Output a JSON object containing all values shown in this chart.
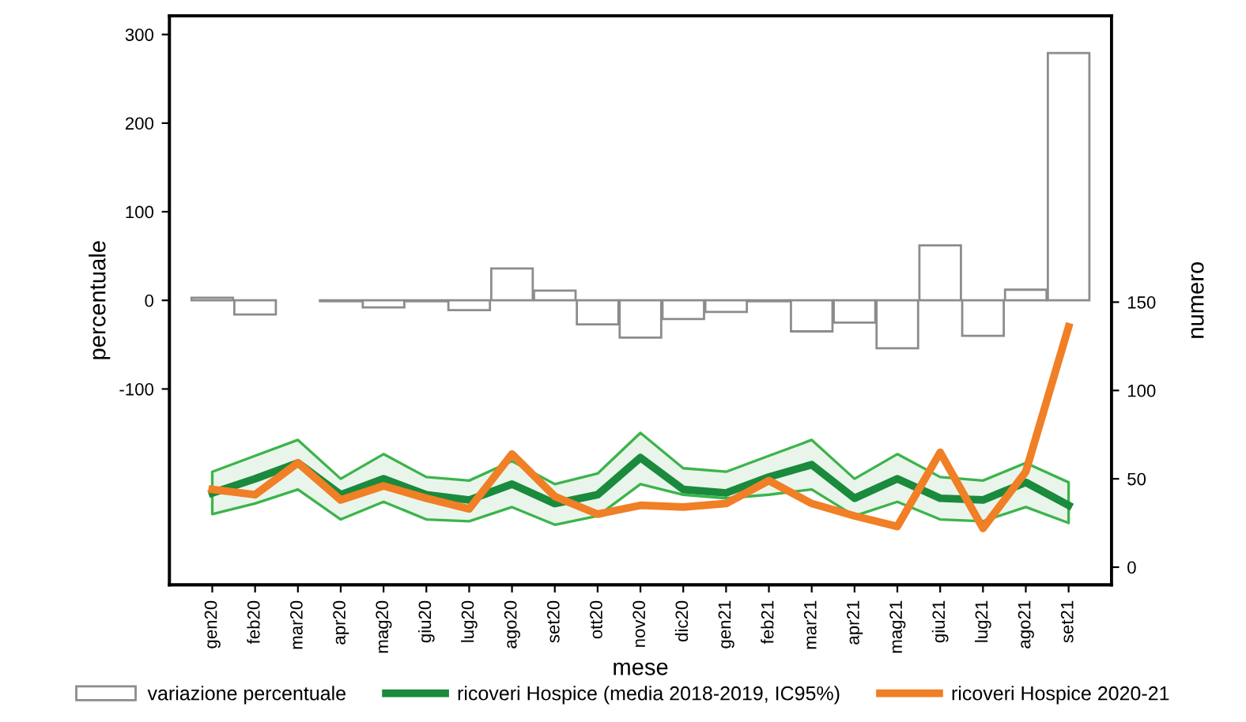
{
  "chart_data": {
    "type": "bar",
    "categories": [
      "gen20",
      "feb20",
      "mar20",
      "apr20",
      "mag20",
      "giu20",
      "lug20",
      "ago20",
      "set20",
      "ott20",
      "nov20",
      "dic20",
      "gen21",
      "feb21",
      "mar21",
      "apr21",
      "mag21",
      "giu21",
      "lug21",
      "ago21",
      "set21"
    ],
    "xlabel": "mese",
    "ylabel": "percentuale",
    "y2label": "numero",
    "ylim": [
      -321,
      321
    ],
    "yticks": [
      -100,
      0,
      100,
      200,
      300
    ],
    "y2lim": [
      -10,
      312
    ],
    "y2ticks": [
      0,
      50,
      100,
      150
    ],
    "grid": false,
    "legend": "bottom",
    "series": [
      {
        "name": "variazione percentuale",
        "color": "#ffffff",
        "values": [
          3,
          -16,
          null,
          -1,
          -8,
          -1,
          -11,
          36,
          11,
          -27,
          -42,
          -21,
          -13,
          -1,
          -35,
          -25,
          -54,
          62,
          -40,
          12,
          279
        ]
      },
      {
        "name": "ricoveri Hospice (media 2018-2019, IC95%)",
        "type": "line",
        "axis": "y2",
        "color": "#1a8a3c",
        "values": [
          42,
          50,
          59,
          41,
          50,
          41,
          38,
          47,
          36,
          41,
          62,
          44,
          42,
          51,
          58,
          39,
          50,
          39,
          38,
          48,
          35
        ],
        "lower": [
          30,
          36,
          44,
          27,
          37,
          27,
          26,
          34,
          24,
          29,
          47,
          41,
          39,
          41,
          44,
          29,
          37,
          27,
          26,
          34,
          25
        ],
        "upper": [
          54,
          63,
          72,
          50,
          64,
          51,
          49,
          60,
          47,
          53,
          76,
          56,
          54,
          63,
          72,
          50,
          64,
          51,
          49,
          59,
          48
        ]
      },
      {
        "name": "ricoveri Hospice 2020-21",
        "type": "line",
        "axis": "y2",
        "color": "#f07f26",
        "values": [
          44,
          41,
          59,
          38,
          46,
          39,
          33,
          64,
          40,
          30,
          35,
          34,
          36,
          49,
          36,
          29,
          23,
          65,
          22,
          54,
          136
        ]
      }
    ]
  }
}
